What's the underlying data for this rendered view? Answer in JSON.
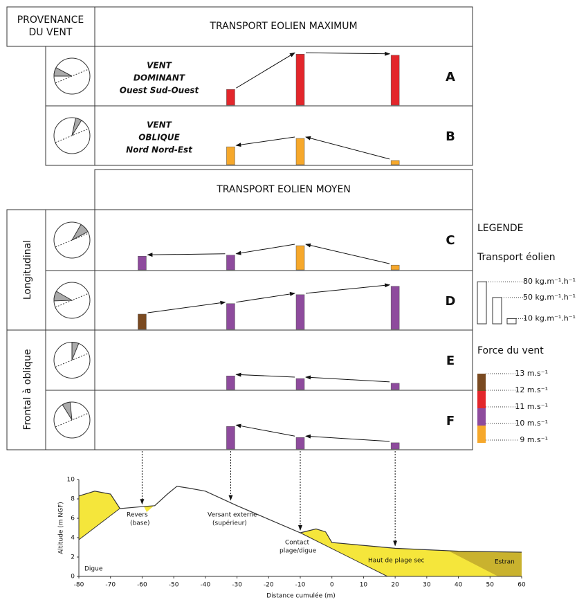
{
  "header": {
    "origin": [
      "PROVENANCE",
      "DU VENT"
    ],
    "max_title": "TRANSPORT EOLIEN MAXIMUM",
    "mean_title": "TRANSPORT EOLIEN MOYEN"
  },
  "groups": [
    "Longitudinal",
    "Frontal à oblique"
  ],
  "positions": [
    -60,
    -32,
    -10,
    20
  ],
  "rows": [
    {
      "letter": "A",
      "label": [
        "VENT",
        "DOMINANT",
        "Ouest Sud-Ouest"
      ],
      "values": [
        null,
        30,
        97,
        95
      ],
      "colors": [
        null,
        "#e3262b",
        "#e3262b",
        "#e3262b"
      ],
      "flow": "east"
    },
    {
      "letter": "B",
      "label": [
        "VENT",
        "OBLIQUE",
        "Nord Nord-Est"
      ],
      "values": [
        null,
        34,
        50,
        8
      ],
      "colors": [
        null,
        "#f6a82b",
        "#f6a82b",
        "#f6a82b"
      ],
      "flow": "west"
    },
    {
      "letter": "C",
      "values": [
        26,
        28,
        46,
        9
      ],
      "colors": [
        "#8e4b9d",
        "#8e4b9d",
        "#f6a82b",
        "#f6a82b"
      ],
      "flow": "west"
    },
    {
      "letter": "D",
      "values": [
        29,
        49,
        66,
        82
      ],
      "colors": [
        "#7a4a21",
        "#8e4b9d",
        "#8e4b9d",
        "#8e4b9d"
      ],
      "flow": "east"
    },
    {
      "letter": "E",
      "values": [
        null,
        26,
        21,
        12
      ],
      "colors": [
        null,
        "#8e4b9d",
        "#8e4b9d",
        "#8e4b9d"
      ],
      "flow": "west"
    },
    {
      "letter": "F",
      "values": [
        null,
        43,
        22,
        12
      ],
      "colors": [
        null,
        "#8e4b9d",
        "#8e4b9d",
        "#8e4b9d"
      ],
      "flow": "west"
    }
  ],
  "legend": {
    "title": "LEGENDE",
    "transport_title": "Transport éolien",
    "transport": [
      {
        "value": 80,
        "label": "80 kg.m⁻¹.h⁻¹"
      },
      {
        "value": 50,
        "label": "50 kg.m⁻¹.h⁻¹"
      },
      {
        "value": 10,
        "label": "10 kg.m⁻¹.h⁻¹"
      }
    ],
    "force_title": "Force du vent",
    "force": [
      {
        "value": 13,
        "label": "13 m.s⁻¹"
      },
      {
        "value": 12,
        "label": "12 m.s⁻¹"
      },
      {
        "value": 11,
        "label": "11 m.s⁻¹"
      },
      {
        "value": 10,
        "label": "10 m.s⁻¹"
      },
      {
        "value": 9,
        "label": "9 m.s⁻¹"
      }
    ],
    "force_colors": [
      "#7a4a21",
      "#e3262b",
      "#8e4b9d",
      "#f6a82b"
    ]
  },
  "profile": {
    "type": "line",
    "x": [
      -80,
      -75,
      -70,
      -67,
      -60,
      -56,
      -52,
      -49,
      -45,
      -40,
      -30,
      -20,
      -10,
      -5,
      -2,
      0,
      20,
      40,
      60
    ],
    "y": [
      8.3,
      8.8,
      8.5,
      7.0,
      7.2,
      7.3,
      8.5,
      9.3,
      9.1,
      8.8,
      7.3,
      5.9,
      4.5,
      4.9,
      4.6,
      3.5,
      2.9,
      2.6,
      2.5
    ],
    "xlim": [
      -80,
      60
    ],
    "xticks": [
      -80,
      -70,
      -60,
      -50,
      -40,
      -30,
      -20,
      -10,
      0,
      10,
      20,
      30,
      40,
      50,
      60
    ],
    "ylim": [
      0,
      10
    ],
    "yticks": [
      0,
      2,
      4,
      6,
      8,
      10
    ],
    "xlabel": "Distance cumulée (m)",
    "ylabel": "Altitude (m NGF)",
    "annotations": {
      "revers": [
        "Revers",
        "(base)"
      ],
      "versant": [
        "Versant externe",
        "(supérieur)"
      ],
      "contact": [
        "Contact",
        "plage/digue"
      ],
      "haut": "Haut de plage sec",
      "estran": "Estran",
      "digue": "Digue"
    }
  }
}
